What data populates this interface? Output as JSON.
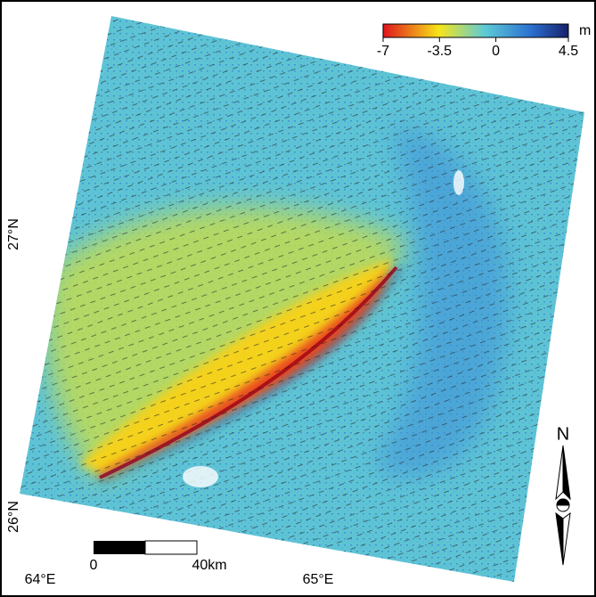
{
  "colorbar": {
    "unit": "m",
    "lim": [
      -7,
      4.5
    ],
    "ticks": [
      -7,
      -3.5,
      0,
      4.5
    ]
  },
  "latitude_labels": [
    "27°N",
    "26°N"
  ],
  "longitude_labels": [
    "64°E",
    "65°E"
  ],
  "scale_bar": {
    "start_label": "0",
    "end_label": "40km"
  },
  "north_label": "N"
}
